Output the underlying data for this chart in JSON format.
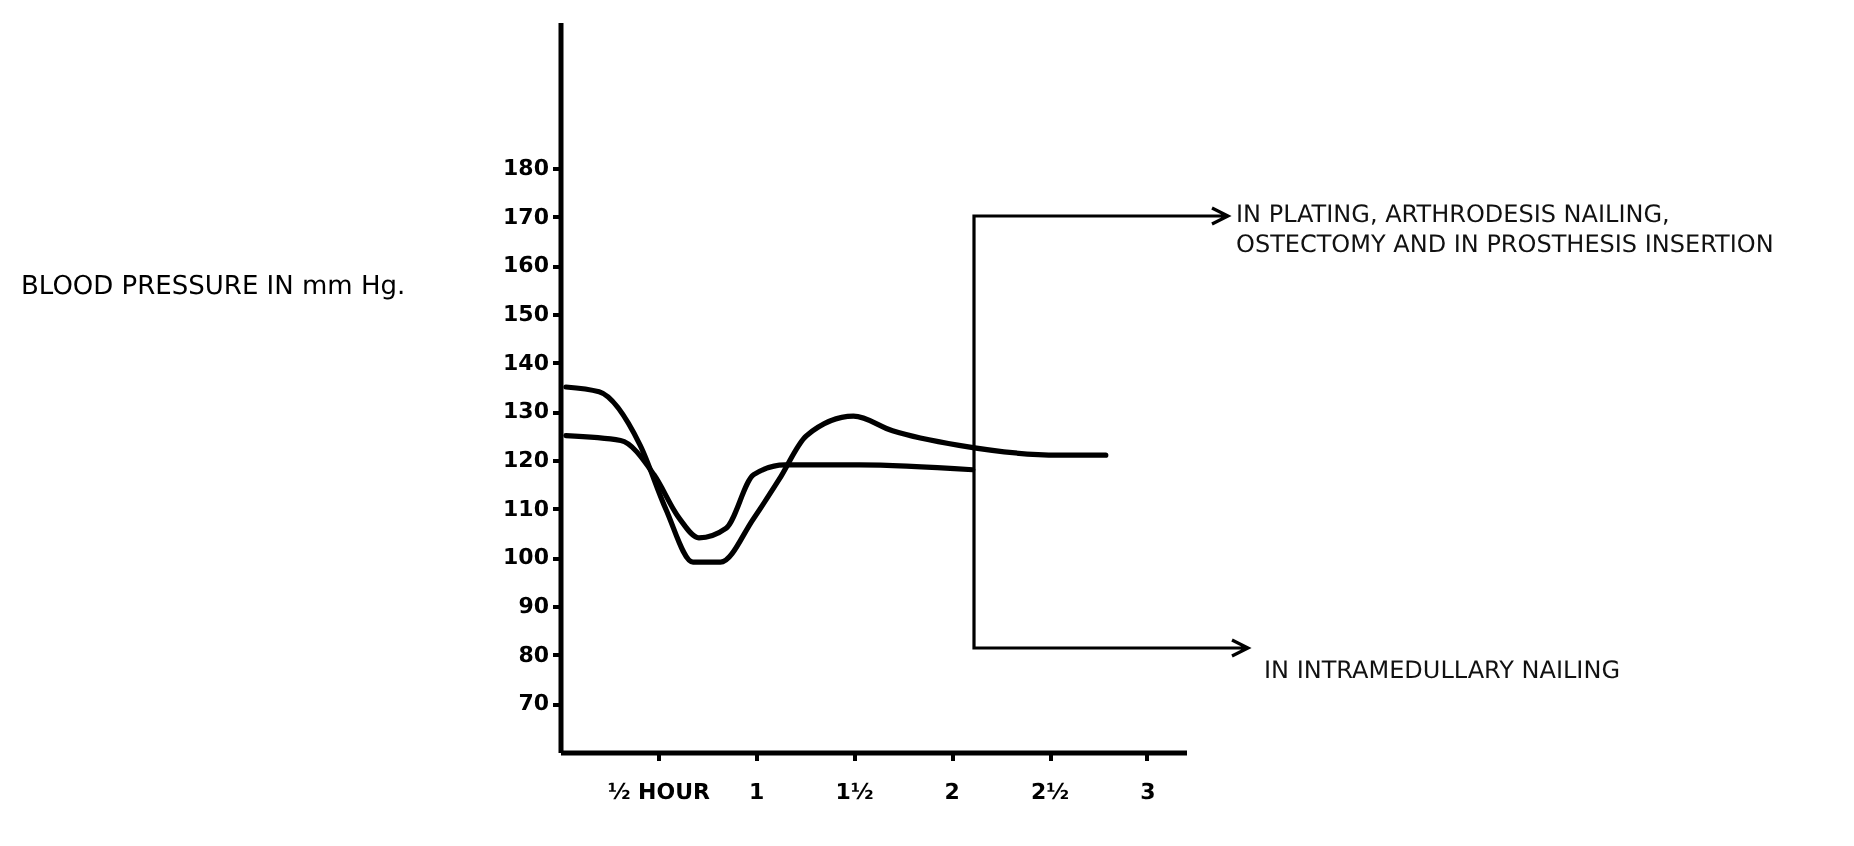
{
  "chart_data": {
    "type": "line",
    "ylabel": "BLOOD PRESSURE IN mm Hg.",
    "series": [
      {
        "color": "#000000",
        "x": [
          0.03,
          0.2,
          0.41,
          0.54,
          0.68,
          0.82,
          0.99,
          1.12,
          1.26,
          1.5,
          1.7,
          2.04,
          2.55,
          2.79
        ],
        "values": [
          135,
          134,
          123,
          110,
          99,
          99,
          108,
          116,
          125,
          129,
          126,
          123,
          121,
          121
        ]
      },
      {
        "color": "#000000",
        "x": [
          0.03,
          0.31,
          0.48,
          0.61,
          0.71,
          0.85,
          0.99,
          1.15,
          1.53,
          2.11
        ],
        "values": [
          125,
          124,
          117,
          108,
          104,
          106,
          117,
          119,
          119,
          118
        ]
      }
    ],
    "xlim": [
      0,
      3.2
    ],
    "xticks": [
      {
        "value": 0.5,
        "label": "½ HOUR"
      },
      1,
      {
        "value": 1.5,
        "label": "1½"
      },
      2,
      {
        "value": 2.5,
        "label": "2½"
      },
      3
    ],
    "ylim": [
      60,
      210
    ],
    "yticks": [
      70,
      80,
      90,
      100,
      110,
      120,
      130,
      140,
      150,
      160,
      170,
      180
    ],
    "grid": false,
    "marker": "none",
    "line_style": "solid",
    "annotations": [
      "IN PLATING, ARTHRODESIS NAILING, OSTECTOMY AND IN PROSTHESIS INSERTION",
      "IN INTRAMEDULLARY NAILING"
    ]
  }
}
